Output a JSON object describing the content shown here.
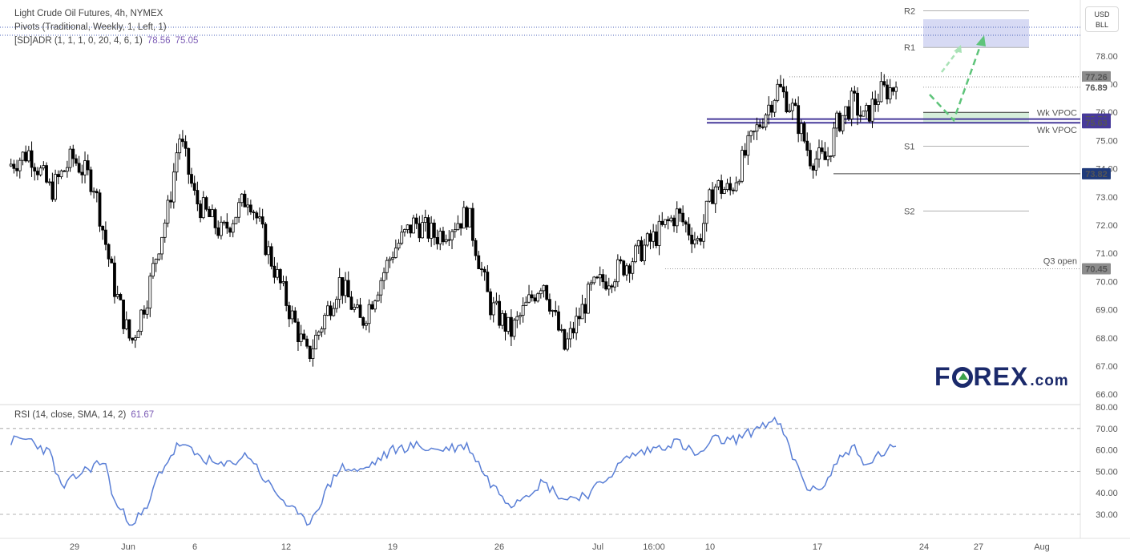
{
  "header": {
    "title": "Light Crude Oil Futures, 4h, NYMEX",
    "pivots": "Pivots (Traditional, Weekly, 1, Left, 1)",
    "adr": "[SD]ADR (1, 1, 1, 0, 20, 4, 6, 1)",
    "adr_v1": "78.56",
    "adr_v2": "75.05"
  },
  "rsi_header": {
    "label": "RSI (14, close, SMA, 14, 2)",
    "value": "61.67"
  },
  "currency_box": {
    "line1": "USD",
    "line2": "BLL"
  },
  "logo": {
    "pre": "F",
    "post": "REX",
    "suffix": ".com"
  },
  "colors": {
    "candle": "#000000",
    "rsi_line": "#5a7fd6",
    "vpoc": "#473a9a",
    "pivot_line": "#b0b0b0",
    "target_zone": "#c9cdf0",
    "support_zone": "#d6eedb",
    "arrow": "#5ec47a",
    "logo": "#1b2a6b",
    "logo_accent": "#3ca24a"
  },
  "chart_data": [
    {
      "type": "candlestick",
      "title": "Light Crude Oil Futures, 4h, NYMEX",
      "ylim": [
        65.5,
        80.2
      ],
      "y_ticks": [
        "66.00",
        "67.00",
        "68.00",
        "69.00",
        "70.00",
        "71.00",
        "72.00",
        "73.00",
        "74.00",
        "75.00",
        "76.00",
        "77.00",
        "78.00"
      ],
      "x_ticks": [
        "29",
        "Jun",
        "6",
        "12",
        "19",
        "26",
        "Jul",
        "16:00",
        "10",
        "17",
        "24",
        "27",
        "Aug"
      ],
      "path_anchors": [
        [
          0,
          74.1
        ],
        [
          0.02,
          74.6
        ],
        [
          0.04,
          73.2
        ],
        [
          0.06,
          74.4
        ],
        [
          0.08,
          73.5
        ],
        [
          0.1,
          69.7
        ],
        [
          0.115,
          67.8
        ],
        [
          0.13,
          69.5
        ],
        [
          0.14,
          71.2
        ],
        [
          0.15,
          72.6
        ],
        [
          0.16,
          75.2
        ],
        [
          0.175,
          72.9
        ],
        [
          0.2,
          71.7
        ],
        [
          0.225,
          73.1
        ],
        [
          0.24,
          71.4
        ],
        [
          0.26,
          69.3
        ],
        [
          0.28,
          67.3
        ],
        [
          0.31,
          70.0
        ],
        [
          0.33,
          68.5
        ],
        [
          0.36,
          71.1
        ],
        [
          0.38,
          72.1
        ],
        [
          0.4,
          71.6
        ],
        [
          0.43,
          72.4
        ],
        [
          0.45,
          69.2
        ],
        [
          0.47,
          68.2
        ],
        [
          0.5,
          70.1
        ],
        [
          0.52,
          67.6
        ],
        [
          0.545,
          69.7
        ],
        [
          0.58,
          70.7
        ],
        [
          0.6,
          71.4
        ],
        [
          0.625,
          72.4
        ],
        [
          0.645,
          71.4
        ],
        [
          0.66,
          73.4
        ],
        [
          0.675,
          73.2
        ],
        [
          0.69,
          74.6
        ],
        [
          0.705,
          75.8
        ],
        [
          0.72,
          76.9
        ],
        [
          0.735,
          76.0
        ],
        [
          0.75,
          74.4
        ],
        [
          0.765,
          74.3
        ],
        [
          0.775,
          75.6
        ],
        [
          0.79,
          76.4
        ],
        [
          0.8,
          75.7
        ],
        [
          0.815,
          76.7
        ],
        [
          0.83,
          76.9
        ]
      ],
      "last_close": 76.89,
      "price_labels": [
        {
          "text": "77.26",
          "value": 77.26
        },
        {
          "text": "76.89",
          "value": 76.89
        },
        {
          "text": "75.76",
          "value": 75.76
        },
        {
          "text": "75.63",
          "value": 75.63
        },
        {
          "text": "73.82",
          "value": 73.82
        },
        {
          "text": "70.45",
          "value": 70.45
        }
      ],
      "pivot_levels": [
        {
          "name": "R2",
          "value": 79.6
        },
        {
          "name": "R1",
          "value": 78.3
        },
        {
          "name": "S1",
          "value": 74.8
        },
        {
          "name": "S2",
          "value": 72.5
        }
      ],
      "annotations": [
        {
          "text": "Wk VPOC",
          "value": 75.76
        },
        {
          "text": "Wk VPOC",
          "value": 75.63
        },
        {
          "text": "Q3 open",
          "value": 70.45
        }
      ],
      "target_zone": [
        78.3,
        79.3
      ],
      "support_zone": [
        75.63,
        76.0
      ]
    },
    {
      "type": "line",
      "title": "RSI (14, close, SMA, 14, 2)",
      "ylim": [
        24,
        80
      ],
      "y_ticks": [
        "30.00",
        "40.00",
        "50.00",
        "60.00",
        "70.00",
        "80.00"
      ],
      "bands": [
        70,
        50,
        30
      ],
      "anchors": [
        [
          0,
          64
        ],
        [
          0.02,
          65
        ],
        [
          0.04,
          58
        ],
        [
          0.05,
          42
        ],
        [
          0.07,
          50
        ],
        [
          0.09,
          55
        ],
        [
          0.1,
          35
        ],
        [
          0.115,
          26
        ],
        [
          0.13,
          32
        ],
        [
          0.14,
          48
        ],
        [
          0.16,
          63
        ],
        [
          0.175,
          58
        ],
        [
          0.2,
          52
        ],
        [
          0.225,
          58
        ],
        [
          0.24,
          46
        ],
        [
          0.26,
          35
        ],
        [
          0.28,
          25
        ],
        [
          0.31,
          52
        ],
        [
          0.33,
          50
        ],
        [
          0.36,
          60
        ],
        [
          0.38,
          62
        ],
        [
          0.4,
          60
        ],
        [
          0.43,
          62
        ],
        [
          0.45,
          45
        ],
        [
          0.47,
          35
        ],
        [
          0.5,
          45
        ],
        [
          0.52,
          37
        ],
        [
          0.545,
          40
        ],
        [
          0.58,
          57
        ],
        [
          0.6,
          60
        ],
        [
          0.625,
          64
        ],
        [
          0.645,
          57
        ],
        [
          0.66,
          65
        ],
        [
          0.675,
          64
        ],
        [
          0.69,
          67
        ],
        [
          0.705,
          72
        ],
        [
          0.72,
          73
        ],
        [
          0.735,
          55
        ],
        [
          0.75,
          40
        ],
        [
          0.765,
          45
        ],
        [
          0.775,
          55
        ],
        [
          0.79,
          62
        ],
        [
          0.8,
          52
        ],
        [
          0.815,
          58
        ],
        [
          0.83,
          61.67
        ]
      ],
      "last_value": 61.67
    }
  ]
}
